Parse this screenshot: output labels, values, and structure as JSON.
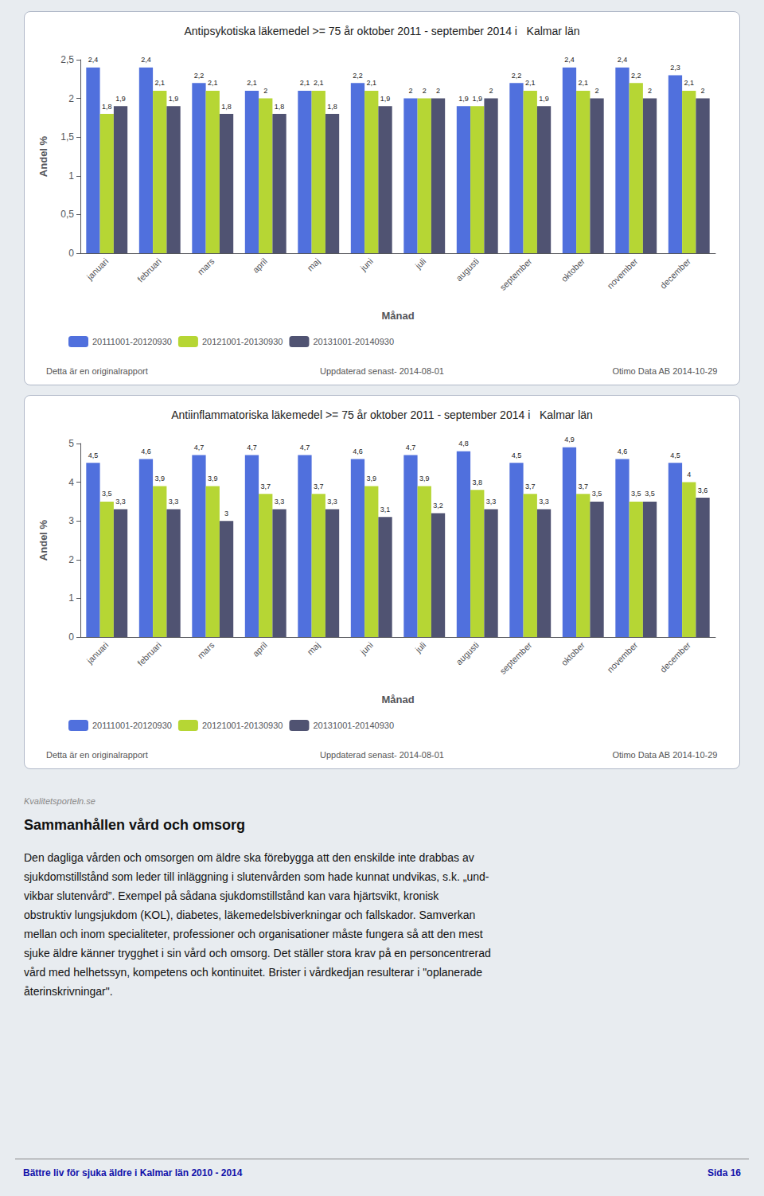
{
  "chart_data": [
    {
      "type": "bar",
      "title": "Antipsykotiska läkemedel >= 75 år oktober 2011 - september 2014 i   Kalmar län",
      "x_label": "Månad",
      "y_label": "Andel %",
      "categories": [
        "januari",
        "februari",
        "mars",
        "april",
        "maj",
        "juni",
        "juli",
        "augusti",
        "september",
        "oktober",
        "november",
        "december"
      ],
      "series": [
        {
          "name": "20111001-20120930",
          "values": [
            2.4,
            2.4,
            2.2,
            2.1,
            2.1,
            2.2,
            2.0,
            1.9,
            2.2,
            2.4,
            2.4,
            2.3
          ],
          "value_labels": [
            "2,4",
            "2,4",
            "2,2",
            "2,1",
            "2,1",
            "2,2",
            "2",
            "1,9",
            "2,2",
            "2,4",
            "2,4",
            "2,3"
          ]
        },
        {
          "name": "20121001-20130930",
          "values": [
            1.8,
            2.1,
            2.1,
            2.0,
            2.1,
            2.1,
            2.0,
            1.9,
            2.1,
            2.1,
            2.2,
            2.1
          ],
          "value_labels": [
            "1,8",
            "2,1",
            "2,1",
            "2",
            "2,1",
            "2,1",
            "2",
            "1,9",
            "2,1",
            "2,1",
            "2,2",
            "2,1"
          ]
        },
        {
          "name": "20131001-20140930",
          "values": [
            1.9,
            1.9,
            1.8,
            1.8,
            1.8,
            1.9,
            2.0,
            2.0,
            1.9,
            2.0,
            2.0,
            2.0
          ],
          "value_labels": [
            "1,9",
            "1,9",
            "1,8",
            "1,8",
            "1,8",
            "1,9",
            "2",
            "2",
            "1,9",
            "2",
            "2",
            "2"
          ]
        }
      ],
      "ylim": [
        0,
        2.5
      ],
      "yticks": [
        0,
        {
          "value": 0.5,
          "label": "0,5"
        },
        1,
        {
          "value": 1.5,
          "label": "1,5"
        },
        2,
        {
          "value": 2.5,
          "label": "2,5"
        }
      ],
      "grid": false,
      "legend": "bottom",
      "data_labels": true,
      "annotations": [
        "Detta är en originalrapport",
        "Uppdaterad senast- 2014-08-01",
        "Otimo Data AB 2014-10-29"
      ]
    },
    {
      "type": "bar",
      "title": "Antiinflammatoriska läkemedel >= 75 år oktober 2011 - september 2014 i   Kalmar län",
      "x_label": "Månad",
      "y_label": "Andel %",
      "categories": [
        "januari",
        "februari",
        "mars",
        "april",
        "maj",
        "juni",
        "juli",
        "augusti",
        "september",
        "oktober",
        "november",
        "december"
      ],
      "series": [
        {
          "name": "20111001-20120930",
          "values": [
            4.5,
            4.6,
            4.7,
            4.7,
            4.7,
            4.6,
            4.7,
            4.8,
            4.5,
            4.9,
            4.6,
            4.5
          ],
          "value_labels": [
            "4,5",
            "4,6",
            "4,7",
            "4,7",
            "4,7",
            "4,6",
            "4,7",
            "4,8",
            "4,5",
            "4,9",
            "4,6",
            "4,5"
          ]
        },
        {
          "name": "20121001-20130930",
          "values": [
            3.5,
            3.9,
            3.9,
            3.7,
            3.7,
            3.9,
            3.9,
            3.8,
            3.7,
            3.7,
            3.5,
            4.0
          ],
          "value_labels": [
            "3,5",
            "3,9",
            "3,9",
            "3,7",
            "3,7",
            "3,9",
            "3,9",
            "3,8",
            "3,7",
            "3,7",
            "3,5",
            "4"
          ]
        },
        {
          "name": "20131001-20140930",
          "values": [
            3.3,
            3.3,
            3.0,
            3.3,
            3.3,
            3.1,
            3.2,
            3.3,
            3.3,
            3.5,
            3.5,
            3.6
          ],
          "value_labels": [
            "3,3",
            "3,3",
            "3",
            "3,3",
            "3,3",
            "3,1",
            "3,2",
            "3,3",
            "3,3",
            "3,5",
            "3,5",
            "3,6"
          ]
        }
      ],
      "ylim": [
        0,
        5
      ],
      "yticks": [
        0,
        1,
        2,
        3,
        4,
        5
      ],
      "grid": false,
      "legend": "bottom",
      "data_labels": true,
      "annotations": [
        "Detta är en originalrapport",
        "Uppdaterad senast- 2014-08-01",
        "Otimo Data AB 2014-10-29"
      ]
    }
  ],
  "watermark": "Kvalitetsporteln.se",
  "heading": "Sammanhållen vård och omsorg",
  "text_lines": [
    "Den dagliga vården och omsorgen om äldre ska förebygga att den enskilde inte drabbas av",
    "sjukdomstillstånd som leder till inläggning i slutenvården som hade kunnat undvikas, s.k. „und-",
    "vikbar slutenvård”. Exempel på sådana sjukdomstillstånd kan vara hjärtsvikt, kronisk",
    "obstruktiv lungsjukdom (KOL), diabetes, läkemedelsbiverkningar och fallskador. Samverkan",
    "mellan och inom specialiteter, professioner och organisationer måste fungera så att den mest",
    "sjuke äldre känner trygghet i sin vård och omsorg. Det ställer stora krav på en personcentrerad",
    "vård med helhetssyn, kompetens och kontinuitet. Brister i vårdkedjan resulterar i \"oplanerade",
    "återinskrivningar\"."
  ],
  "page_footer": [
    "Bättre liv för sjuka äldre i Kalmar län 2010  - 2014",
    "Sida 16"
  ]
}
